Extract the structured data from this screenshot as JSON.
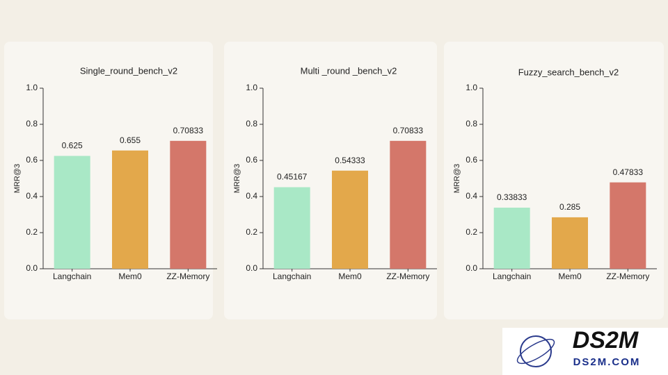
{
  "chart_data": [
    {
      "type": "bar",
      "title": "Single_round_bench_v2",
      "ylabel": "MRR@3",
      "categories": [
        "Langchain",
        "Mem0",
        "ZZ-Memory"
      ],
      "values": [
        0.625,
        0.655,
        0.70833
      ],
      "colors": [
        "#a9e8c6",
        "#e3a84b",
        "#d4776a"
      ],
      "ylim": [
        0,
        1
      ],
      "yticks": [
        {
          "value": 0,
          "label": "0.0"
        },
        0.2,
        0.4,
        0.6,
        0.8,
        {
          "value": 1,
          "label": "1.0"
        }
      ]
    },
    {
      "type": "bar",
      "title": "Multi _round _bench_v2",
      "ylabel": "MRR@3",
      "categories": [
        "Langchain",
        "Mem0",
        "ZZ-Memory"
      ],
      "values": [
        0.45167,
        0.54333,
        0.70833
      ],
      "colors": [
        "#a9e8c6",
        "#e3a84b",
        "#d4776a"
      ],
      "ylim": [
        0,
        1
      ],
      "yticks": [
        {
          "value": 0,
          "label": "0.0"
        },
        0.2,
        0.4,
        0.6,
        0.8,
        {
          "value": 1,
          "label": "1.0"
        }
      ]
    },
    {
      "type": "bar",
      "title": "Fuzzy_search_bench_v2",
      "ylabel": "MRR@3",
      "categories": [
        "Langchain",
        "Mem0",
        "ZZ-Memory"
      ],
      "values": [
        0.33833,
        0.285,
        0.47833
      ],
      "colors": [
        "#a9e8c6",
        "#e3a84b",
        "#d4776a"
      ],
      "ylim": [
        0,
        1
      ],
      "yticks": [
        {
          "value": 0,
          "label": "0.0"
        },
        0.2,
        0.4,
        0.6,
        0.8,
        {
          "value": 1,
          "label": "1.0"
        }
      ]
    }
  ],
  "watermark": {
    "name": "DS2M",
    "url": "DS2M.COM"
  }
}
